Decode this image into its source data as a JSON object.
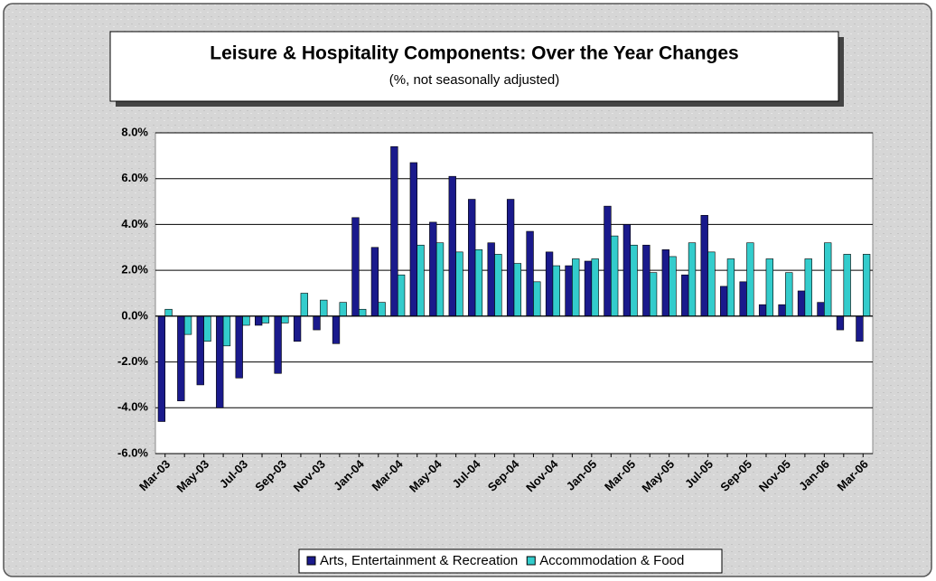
{
  "chart_data": {
    "type": "bar",
    "title": "Leisure & Hospitality Components: Over the Year Changes",
    "subtitle": "(%, not seasonally adjusted)",
    "categories": [
      "Mar-03",
      null,
      "May-03",
      null,
      "Jul-03",
      null,
      "Sep-03",
      null,
      "Nov-03",
      null,
      "Jan-04",
      null,
      "Mar-04",
      null,
      "May-04",
      null,
      "Jul-04",
      null,
      "Sep-04",
      null,
      "Nov-04",
      null,
      "Jan-05",
      null,
      "Mar-05",
      null,
      "May-05",
      null,
      "Jul-05",
      null,
      "Sep-05",
      null,
      "Nov-05",
      null,
      "Jan-06",
      null,
      "Mar-06"
    ],
    "series": [
      {
        "name": "Arts, Entertainment & Recreation",
        "color": "#1a1a8c",
        "values": [
          -4.6,
          -3.7,
          -3.0,
          -4.0,
          -2.7,
          -0.4,
          -2.5,
          -1.1,
          -0.6,
          -1.2,
          4.3,
          3.0,
          7.4,
          6.7,
          4.1,
          6.1,
          5.1,
          3.2,
          5.1,
          3.7,
          2.8,
          2.2,
          2.4,
          4.8,
          4.0,
          3.1,
          2.9,
          1.8,
          4.4,
          1.3,
          1.5,
          0.5,
          0.5,
          1.1,
          0.6,
          -0.6,
          -1.1
        ]
      },
      {
        "name": "Accommodation & Food",
        "color": "#33cccc",
        "values": [
          0.3,
          -0.8,
          -1.1,
          -1.3,
          -0.4,
          -0.3,
          -0.3,
          1.0,
          0.7,
          0.6,
          0.3,
          0.6,
          1.8,
          3.1,
          3.2,
          2.8,
          2.9,
          2.7,
          2.3,
          1.5,
          2.2,
          2.5,
          2.5,
          3.5,
          3.1,
          1.9,
          2.6,
          3.2,
          2.8,
          2.5,
          3.2,
          2.5,
          1.9,
          2.5,
          3.2,
          2.7,
          2.7
        ]
      }
    ],
    "ylim": [
      -6,
      8
    ],
    "yticks": [
      {
        "value": -6,
        "label": "-6.0%"
      },
      {
        "value": -4,
        "label": "-4.0%"
      },
      {
        "value": -2,
        "label": "-2.0%"
      },
      {
        "value": 0,
        "label": "0.0%"
      },
      {
        "value": 2,
        "label": "2.0%"
      },
      {
        "value": 4,
        "label": "4.0%"
      },
      {
        "value": 6,
        "label": "6.0%"
      },
      {
        "value": 8,
        "label": "8.0%"
      }
    ],
    "grid": true,
    "legend": "bottom"
  }
}
